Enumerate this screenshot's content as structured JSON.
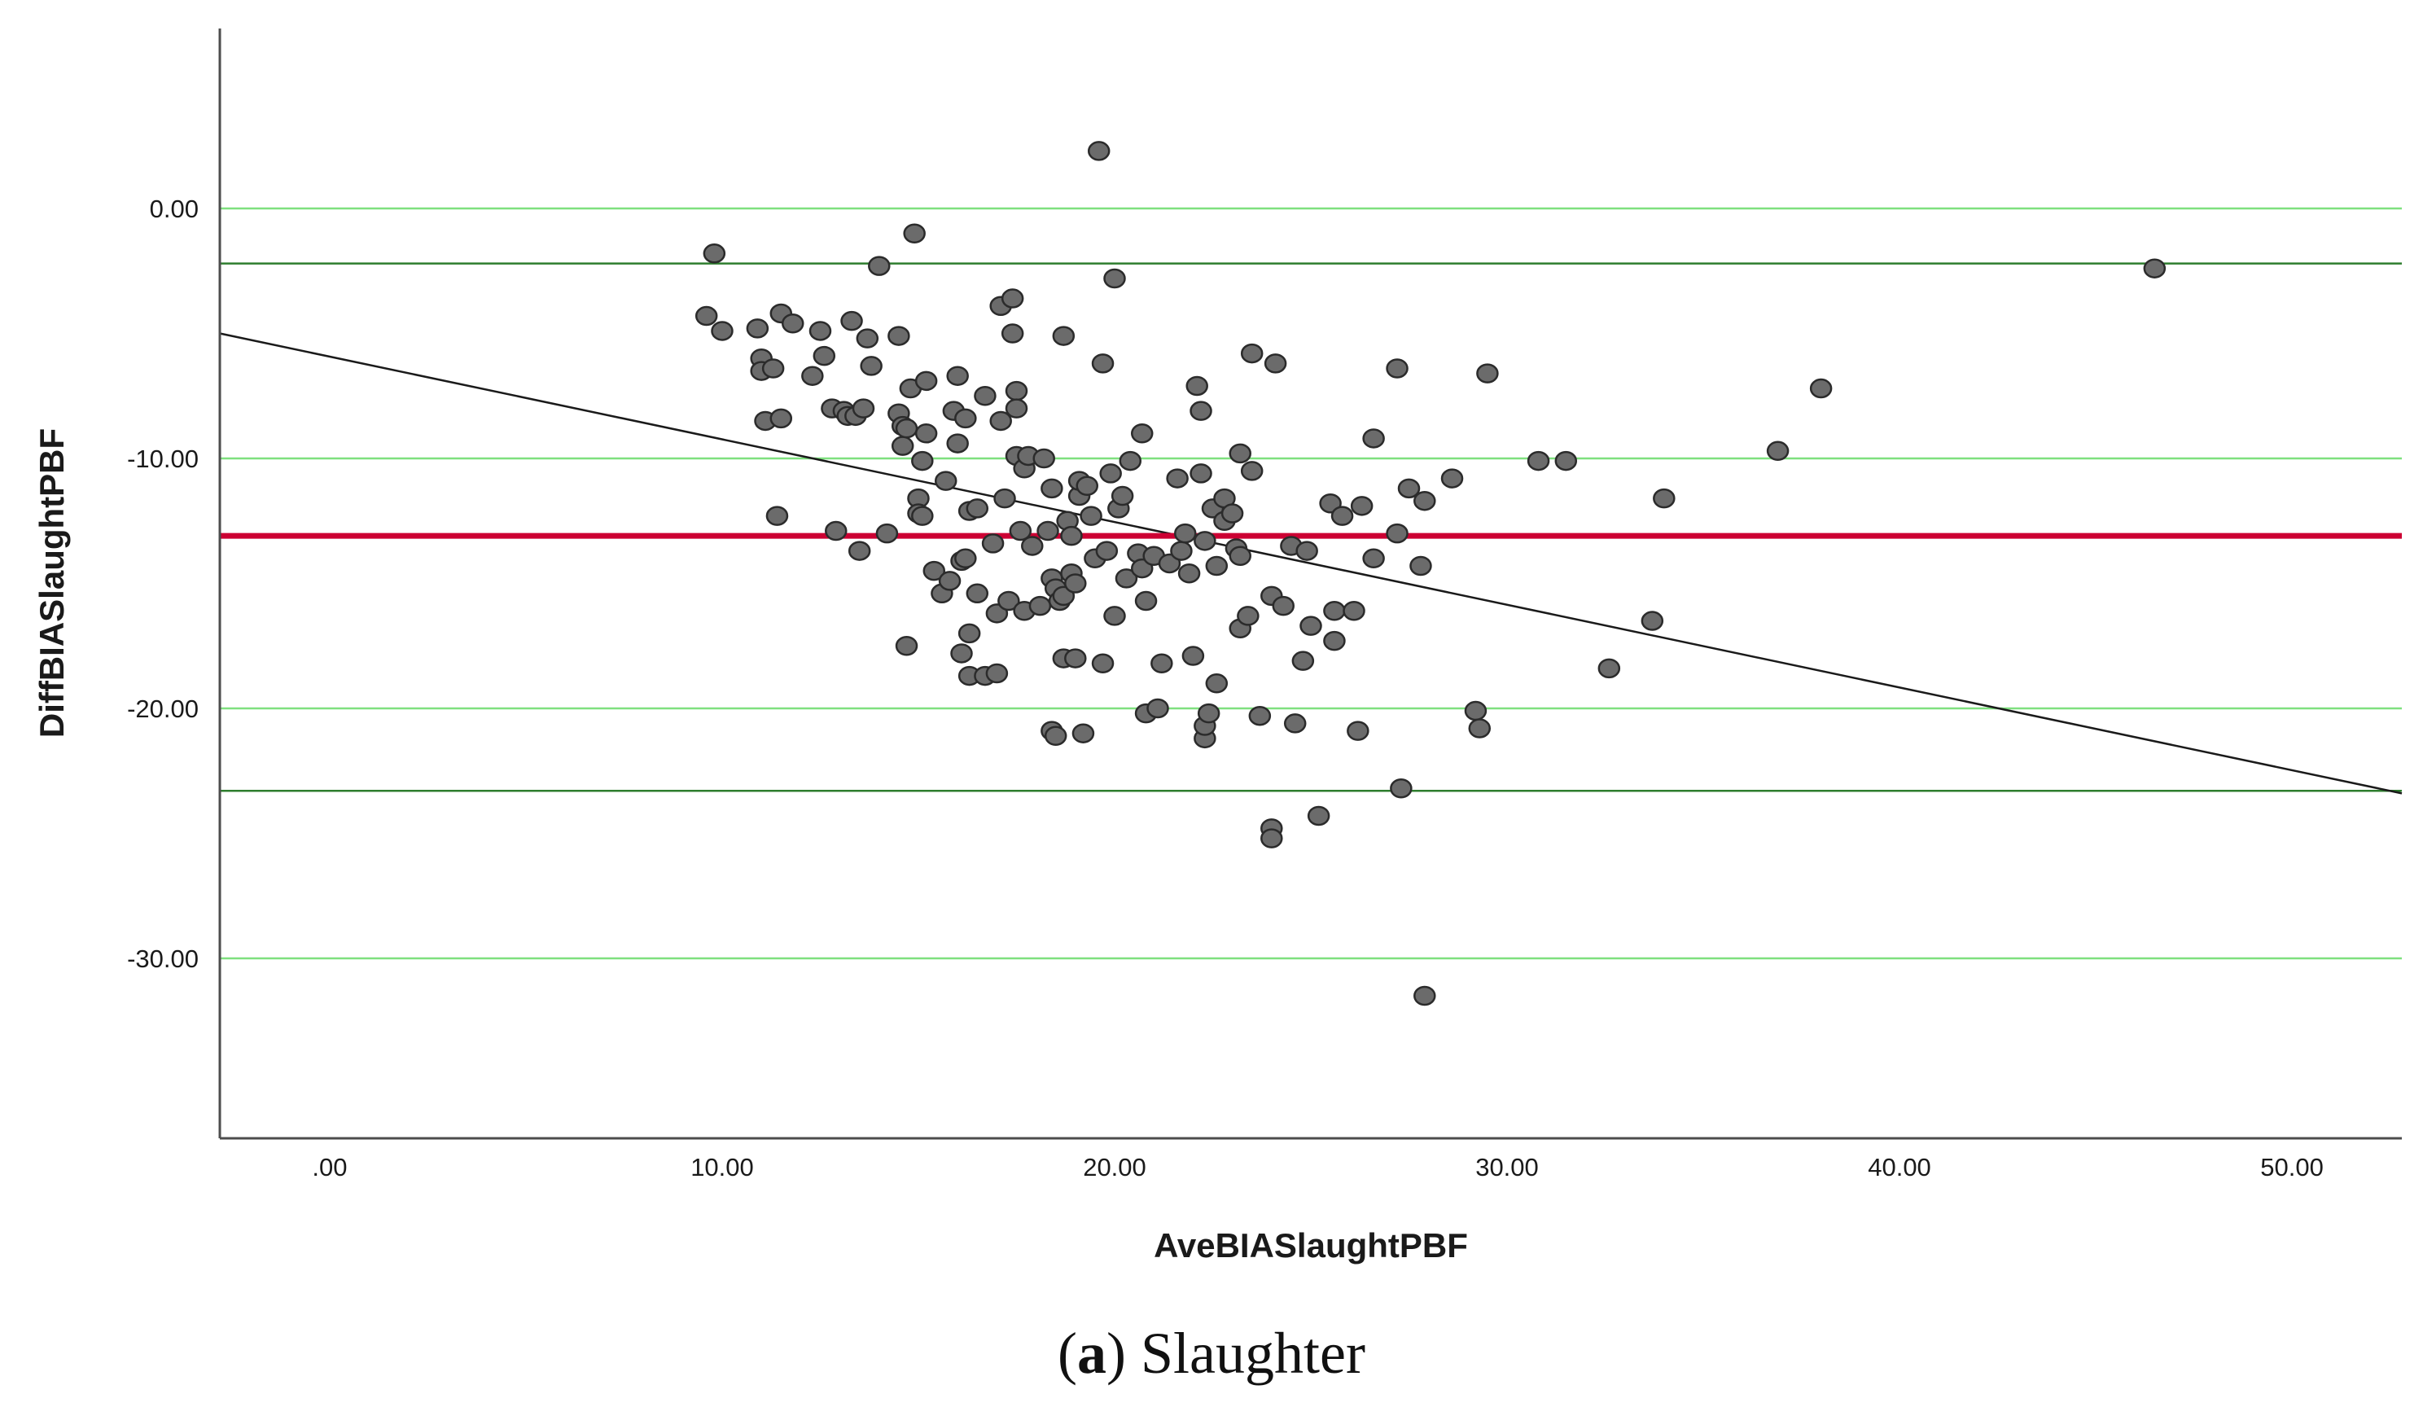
{
  "chart_data": {
    "type": "scatter",
    "xlabel": "AveBIASlaughtPBF",
    "ylabel": "DiffBIASlaughtPBF",
    "xlim": [
      -2.8,
      52.8
    ],
    "ylim": [
      -37.2,
      7.2
    ],
    "x_ticks": [
      {
        "value": 0,
        "label": ".00"
      },
      {
        "value": 10,
        "label": "10.00"
      },
      {
        "value": 20,
        "label": "20.00"
      },
      {
        "value": 30,
        "label": "30.00"
      },
      {
        "value": 40,
        "label": "40.00"
      },
      {
        "value": 50,
        "label": "50.00"
      }
    ],
    "y_ticks": [
      {
        "value": 0,
        "label": "0.00"
      },
      {
        "value": -10,
        "label": "-10.00"
      },
      {
        "value": -20,
        "label": "-20.00"
      },
      {
        "value": -30,
        "label": "-30.00"
      }
    ],
    "grid": "horizontal major gridlines",
    "colors": {
      "points_fill": "#6b6b6b",
      "points_stroke": "#2b2b2b",
      "grid": "#7fe07f",
      "mean_line": "#cc0033",
      "limit_lines": "#2e7d2e",
      "regression_line": "#1a1a1a",
      "axis": "#4d4d4d"
    },
    "reference_lines": {
      "mean_difference": -13.1,
      "upper_limit_of_agreement": -2.2,
      "lower_limit_of_agreement": -23.3
    },
    "regression_line": {
      "x": [
        -2.8,
        52.8
      ],
      "y": [
        -5.0,
        -23.4
      ]
    },
    "points": [
      [
        9.6,
        -4.3
      ],
      [
        9.8,
        -1.8
      ],
      [
        10.0,
        -4.9
      ],
      [
        10.9,
        -4.8
      ],
      [
        11.0,
        -6.0
      ],
      [
        11.0,
        -6.5
      ],
      [
        11.1,
        -8.5
      ],
      [
        11.3,
        -6.4
      ],
      [
        11.4,
        -12.3
      ],
      [
        11.5,
        -4.2
      ],
      [
        11.5,
        -8.4
      ],
      [
        11.8,
        -4.6
      ],
      [
        12.3,
        -6.7
      ],
      [
        12.5,
        -4.9
      ],
      [
        12.6,
        -5.9
      ],
      [
        12.8,
        -8.0
      ],
      [
        12.9,
        -12.9
      ],
      [
        13.1,
        -8.1
      ],
      [
        13.2,
        -8.3
      ],
      [
        13.3,
        -4.5
      ],
      [
        13.4,
        -8.3
      ],
      [
        13.5,
        -13.7
      ],
      [
        13.6,
        -8.0
      ],
      [
        13.7,
        -5.2
      ],
      [
        13.8,
        -6.3
      ],
      [
        14.0,
        -2.3
      ],
      [
        14.2,
        -13.0
      ],
      [
        14.5,
        -5.1
      ],
      [
        14.5,
        -8.2
      ],
      [
        14.6,
        -8.7
      ],
      [
        14.6,
        -9.5
      ],
      [
        14.7,
        -17.5
      ],
      [
        14.7,
        -8.8
      ],
      [
        14.8,
        -7.2
      ],
      [
        14.9,
        -1.0
      ],
      [
        15.0,
        -11.6
      ],
      [
        15.0,
        -12.2
      ],
      [
        15.1,
        -12.3
      ],
      [
        15.1,
        -10.1
      ],
      [
        15.2,
        -9.0
      ],
      [
        15.2,
        -6.9
      ],
      [
        15.4,
        -14.5
      ],
      [
        15.6,
        -15.4
      ],
      [
        15.7,
        -10.9
      ],
      [
        15.8,
        -14.9
      ],
      [
        15.9,
        -8.1
      ],
      [
        16.0,
        -6.7
      ],
      [
        16.0,
        -9.4
      ],
      [
        16.1,
        -14.1
      ],
      [
        16.1,
        -17.8
      ],
      [
        16.2,
        -14.0
      ],
      [
        16.2,
        -8.4
      ],
      [
        16.3,
        -12.1
      ],
      [
        16.3,
        -17.0
      ],
      [
        16.3,
        -18.7
      ],
      [
        16.5,
        -12.0
      ],
      [
        16.5,
        -15.4
      ],
      [
        16.7,
        -7.5
      ],
      [
        16.7,
        -18.7
      ],
      [
        16.9,
        -13.4
      ],
      [
        17.0,
        -16.2
      ],
      [
        17.0,
        -18.6
      ],
      [
        17.1,
        -8.5
      ],
      [
        17.1,
        -3.9
      ],
      [
        17.2,
        -11.6
      ],
      [
        17.3,
        -15.7
      ],
      [
        17.4,
        -5.0
      ],
      [
        17.4,
        -3.6
      ],
      [
        17.5,
        -7.3
      ],
      [
        17.5,
        -9.9
      ],
      [
        17.5,
        -8.0
      ],
      [
        17.6,
        -12.9
      ],
      [
        17.7,
        -10.4
      ],
      [
        17.7,
        -16.1
      ],
      [
        17.8,
        -9.9
      ],
      [
        17.9,
        -13.5
      ],
      [
        18.1,
        -15.9
      ],
      [
        18.2,
        -10.0
      ],
      [
        18.3,
        -12.9
      ],
      [
        18.4,
        -20.9
      ],
      [
        18.4,
        -14.8
      ],
      [
        18.4,
        -11.2
      ],
      [
        18.5,
        -15.2
      ],
      [
        18.5,
        -21.1
      ],
      [
        18.6,
        -15.7
      ],
      [
        18.7,
        -18.0
      ],
      [
        18.7,
        -5.1
      ],
      [
        18.7,
        -15.5
      ],
      [
        18.8,
        -12.5
      ],
      [
        18.9,
        -14.6
      ],
      [
        18.9,
        -13.1
      ],
      [
        19.0,
        -15.0
      ],
      [
        19.0,
        -18.0
      ],
      [
        19.1,
        -11.5
      ],
      [
        19.1,
        -10.9
      ],
      [
        19.2,
        -21.0
      ],
      [
        19.3,
        -11.1
      ],
      [
        19.4,
        -12.3
      ],
      [
        19.5,
        -14.0
      ],
      [
        19.6,
        2.3
      ],
      [
        19.7,
        -6.2
      ],
      [
        19.7,
        -18.2
      ],
      [
        19.8,
        -13.7
      ],
      [
        19.9,
        -10.6
      ],
      [
        20.0,
        -2.8
      ],
      [
        20.0,
        -16.3
      ],
      [
        20.1,
        -12.0
      ],
      [
        20.2,
        -11.5
      ],
      [
        20.3,
        -14.8
      ],
      [
        20.4,
        -10.1
      ],
      [
        20.6,
        -13.8
      ],
      [
        20.7,
        -9.0
      ],
      [
        20.7,
        -14.4
      ],
      [
        20.8,
        -15.7
      ],
      [
        20.8,
        -20.2
      ],
      [
        21.0,
        -13.9
      ],
      [
        21.1,
        -20.0
      ],
      [
        21.2,
        -18.2
      ],
      [
        21.4,
        -14.2
      ],
      [
        21.6,
        -10.8
      ],
      [
        21.7,
        -13.7
      ],
      [
        21.8,
        -13.0
      ],
      [
        21.9,
        -14.6
      ],
      [
        22.0,
        -17.9
      ],
      [
        22.1,
        -7.1
      ],
      [
        22.2,
        -8.1
      ],
      [
        22.2,
        -10.6
      ],
      [
        22.3,
        -13.3
      ],
      [
        22.3,
        -21.2
      ],
      [
        22.3,
        -20.7
      ],
      [
        22.4,
        -20.2
      ],
      [
        22.5,
        -12.0
      ],
      [
        22.6,
        -14.3
      ],
      [
        22.6,
        -19.0
      ],
      [
        22.8,
        -11.6
      ],
      [
        22.8,
        -12.5
      ],
      [
        23.0,
        -12.2
      ],
      [
        23.1,
        -13.6
      ],
      [
        23.2,
        -13.9
      ],
      [
        23.2,
        -16.8
      ],
      [
        23.2,
        -9.8
      ],
      [
        23.4,
        -16.3
      ],
      [
        23.5,
        -10.5
      ],
      [
        23.5,
        -5.8
      ],
      [
        23.7,
        -20.3
      ],
      [
        24.0,
        -15.5
      ],
      [
        24.0,
        -24.8
      ],
      [
        24.0,
        -25.2
      ],
      [
        24.1,
        -6.2
      ],
      [
        24.3,
        -15.9
      ],
      [
        24.5,
        -13.5
      ],
      [
        24.6,
        -20.6
      ],
      [
        24.8,
        -18.1
      ],
      [
        24.9,
        -13.7
      ],
      [
        25.0,
        -16.7
      ],
      [
        25.2,
        -24.3
      ],
      [
        25.5,
        -11.8
      ],
      [
        25.6,
        -17.3
      ],
      [
        25.6,
        -16.1
      ],
      [
        25.8,
        -12.3
      ],
      [
        26.1,
        -16.1
      ],
      [
        26.2,
        -20.9
      ],
      [
        26.3,
        -11.9
      ],
      [
        26.6,
        -9.2
      ],
      [
        26.6,
        -14.0
      ],
      [
        27.2,
        -13.0
      ],
      [
        27.2,
        -6.4
      ],
      [
        27.3,
        -23.2
      ],
      [
        27.5,
        -11.2
      ],
      [
        27.8,
        -14.3
      ],
      [
        27.9,
        -11.7
      ],
      [
        27.9,
        -31.5
      ],
      [
        28.6,
        -10.8
      ],
      [
        29.2,
        -20.1
      ],
      [
        29.3,
        -20.8
      ],
      [
        29.5,
        -6.6
      ],
      [
        30.8,
        -10.1
      ],
      [
        31.5,
        -10.1
      ],
      [
        32.6,
        -18.4
      ],
      [
        33.7,
        -16.5
      ],
      [
        34.0,
        -11.6
      ],
      [
        36.9,
        -9.7
      ],
      [
        38.0,
        -7.2
      ],
      [
        46.5,
        -2.4
      ]
    ]
  },
  "caption": {
    "label": "a",
    "text": " Slaughter"
  }
}
